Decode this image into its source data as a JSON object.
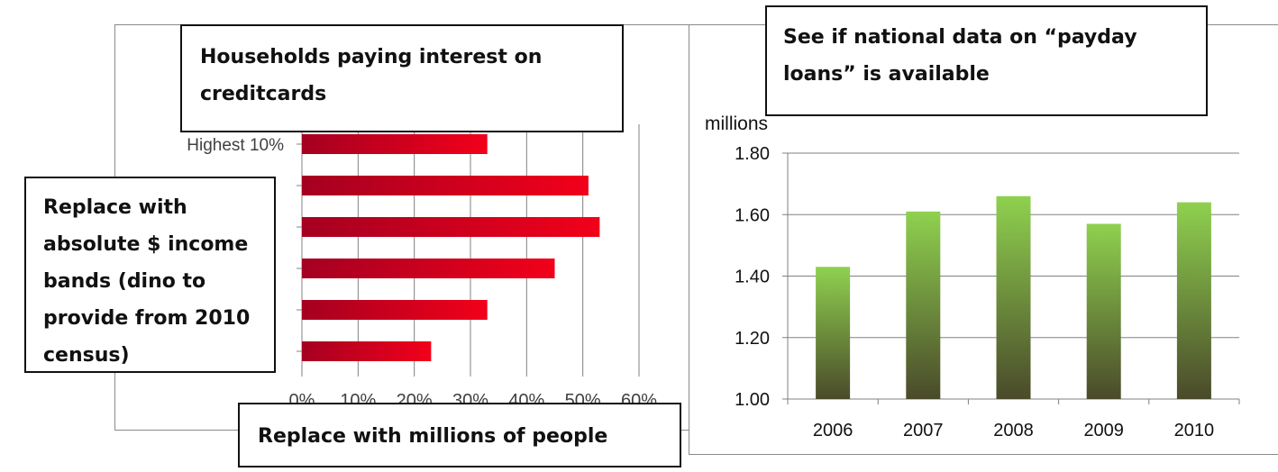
{
  "notes": {
    "top_left": "Households paying interest on creditcards",
    "middle_left": "Replace with absolute $ income bands (dino to provide from 2010 census)",
    "bottom": "Replace with millions of people",
    "top_right": "See if national data on “payday loans” is available"
  },
  "colors": {
    "red_dark": "#A50021",
    "red_bright": "#F2001A",
    "green_dark": "#4A4A2A",
    "green_light": "#8FD14F",
    "grid": "#808080"
  },
  "chart_data": [
    {
      "type": "bar",
      "orientation": "horizontal",
      "categories": [
        "Highest 10%",
        "",
        "",
        "",
        "",
        ""
      ],
      "values": [
        33,
        51,
        53,
        45,
        33,
        23
      ],
      "xlim": [
        0,
        60
      ],
      "xticks": [
        "0%",
        "10%",
        "20%",
        "30%",
        "40%",
        "50%",
        "60%"
      ],
      "grid": true
    },
    {
      "type": "bar",
      "categories": [
        "2006",
        "2007",
        "2008",
        "2009",
        "2010"
      ],
      "values": [
        1.43,
        1.61,
        1.66,
        1.57,
        1.64
      ],
      "ylabel": "millions",
      "ylim": [
        1.0,
        1.8
      ],
      "yticks": [
        "1.00",
        "1.20",
        "1.40",
        "1.60",
        "1.80"
      ],
      "grid": true
    }
  ]
}
